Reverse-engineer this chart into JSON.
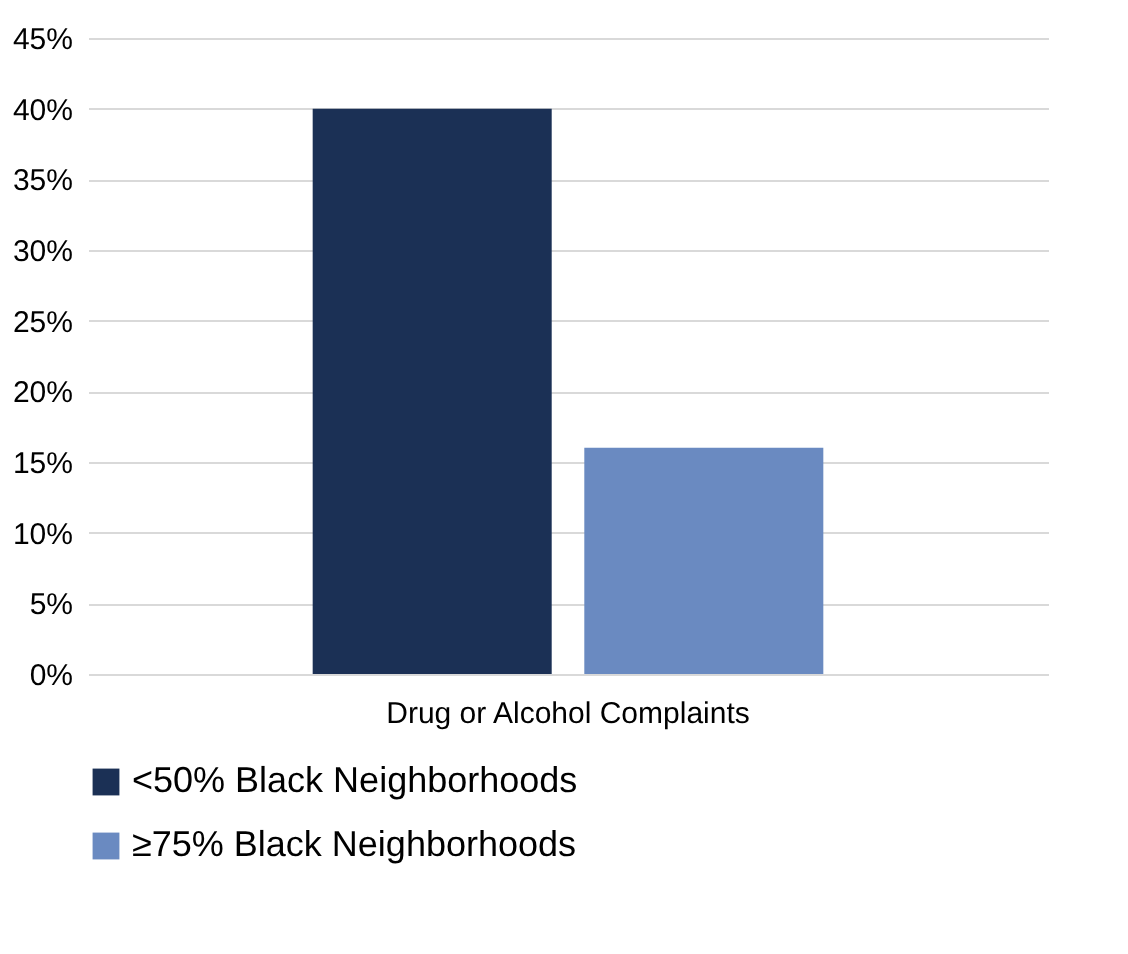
{
  "chart_data": {
    "type": "bar",
    "categories": [
      "Drug or Alcohol Complaints"
    ],
    "series": [
      {
        "name": "<50% Black Neighborhoods",
        "color": "#1b3055",
        "values": [
          40
        ]
      },
      {
        "name": "≥75% Black Neighborhoods",
        "color": "#6a8ac1",
        "values": [
          16
        ]
      }
    ],
    "ylim": [
      0,
      45
    ],
    "yticks": [
      {
        "value": 0,
        "label": "0%"
      },
      {
        "value": 5,
        "label": "5%"
      },
      {
        "value": 10,
        "label": "10%"
      },
      {
        "value": 15,
        "label": "15%"
      },
      {
        "value": 20,
        "label": "20%"
      },
      {
        "value": 25,
        "label": "25%"
      },
      {
        "value": 30,
        "label": "30%"
      },
      {
        "value": 35,
        "label": "35%"
      },
      {
        "value": 40,
        "label": "40%"
      },
      {
        "value": 45,
        "label": "45%"
      }
    ],
    "grid": "y",
    "legend": "bottom"
  }
}
